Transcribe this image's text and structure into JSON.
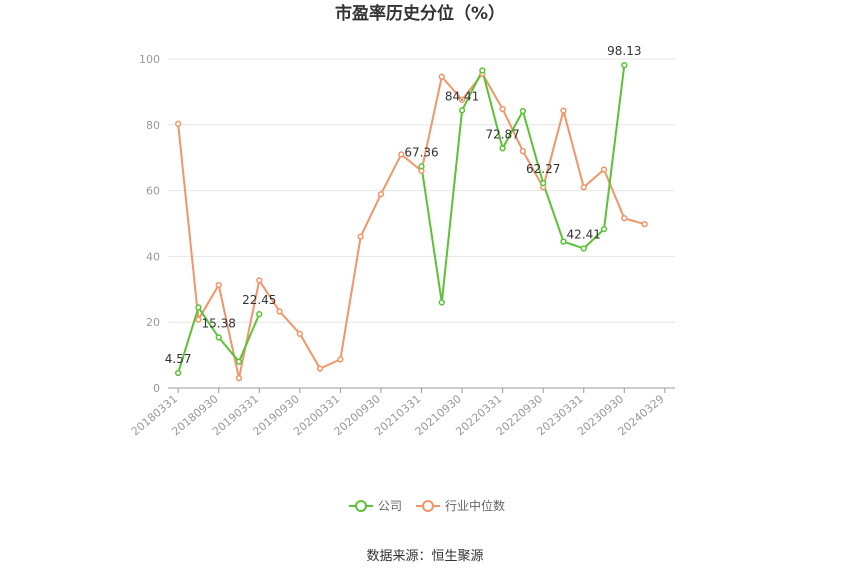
{
  "chart_data": {
    "type": "line",
    "title": "市盈率历史分位（%）",
    "source": "数据来源：恒生聚源",
    "ylim": [
      0,
      100
    ],
    "yticks": [
      "0",
      "20",
      "40",
      "60",
      "80",
      "100"
    ],
    "x_tick_labels": [
      "20180331",
      "20180930",
      "20190331",
      "20190930",
      "20200331",
      "20200930",
      "20210331",
      "20210930",
      "20220331",
      "20220930",
      "20230331",
      "20230930",
      "20240329"
    ],
    "x": [
      "20180331",
      "20180630",
      "20180930",
      "20181231",
      "20190331",
      "20190630",
      "20190930",
      "20191231",
      "20200331",
      "20200630",
      "20200930",
      "20201231",
      "20210331",
      "20210630",
      "20210930",
      "20211231",
      "20220331",
      "20220630",
      "20220930",
      "20221231",
      "20230331",
      "20230630",
      "20230930",
      "20231231",
      "20240329"
    ],
    "legend_position": "bottom",
    "series": [
      {
        "name": "公司",
        "color": "#5bc236",
        "values": [
          4.57,
          24.5,
          15.38,
          8.0,
          22.45,
          null,
          null,
          null,
          null,
          null,
          null,
          null,
          67.36,
          26.0,
          84.41,
          96.5,
          72.87,
          84.2,
          62.27,
          44.5,
          42.41,
          48.3,
          98.13,
          null,
          null
        ],
        "labels": {
          "0": "4.57",
          "2": "15.38",
          "4": "22.45",
          "12": "67.36",
          "14": "84.41",
          "16": "72.87",
          "18": "62.27",
          "20": "42.41",
          "22": "98.13"
        }
      },
      {
        "name": "行业中位数",
        "color": "#f09668",
        "values": [
          80.3,
          20.8,
          31.3,
          3.0,
          32.7,
          23.3,
          16.5,
          5.9,
          8.7,
          46.0,
          58.9,
          71.0,
          66.0,
          94.6,
          87.6,
          95.5,
          84.8,
          72.0,
          61.0,
          84.3,
          61.0,
          66.4,
          51.6,
          49.8,
          null
        ]
      }
    ]
  }
}
